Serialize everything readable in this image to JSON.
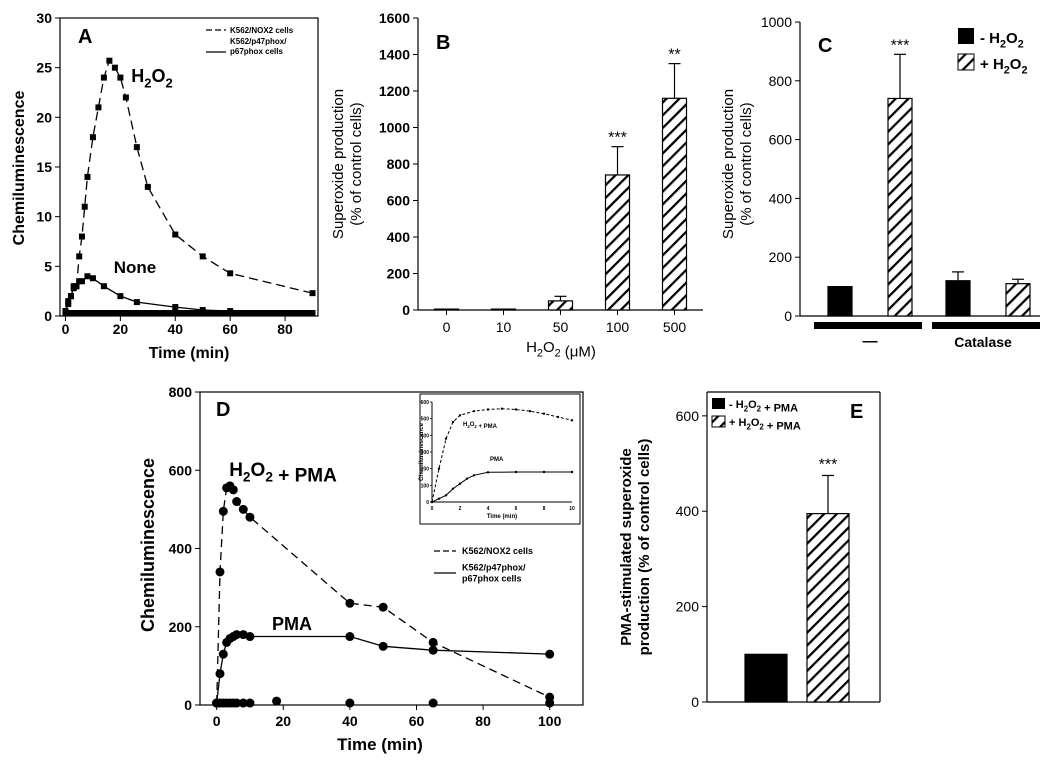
{
  "colors": {
    "ink": "#000000",
    "background": "#ffffff"
  },
  "chart_data": [
    {
      "id": "A",
      "type": "line",
      "panel_letter": "A",
      "xlabel": "Time (min)",
      "ylabel": "Chemiluminescence",
      "xlim": [
        -2,
        92
      ],
      "ylim": [
        0,
        30
      ],
      "xticks": [
        "0",
        "20",
        "40",
        "60",
        "80"
      ],
      "yticks": [
        "0",
        "5",
        "10",
        "15",
        "20",
        "25",
        "30"
      ],
      "legend": [
        "K562/NOX2 cells",
        "K562/p47phox/ p67phox cells"
      ],
      "annotations": [
        "H2O2",
        "None"
      ],
      "series": [
        {
          "style": "dashed",
          "x": [
            0,
            1,
            2,
            3,
            4,
            5,
            6,
            7,
            8,
            10,
            12,
            14,
            16,
            18,
            20,
            22,
            26,
            30,
            40,
            50,
            60,
            90
          ],
          "y": [
            0.5,
            1.5,
            2.0,
            3.0,
            3.0,
            6.0,
            8.0,
            11.0,
            14.0,
            18.0,
            21.0,
            24.0,
            25.7,
            25.0,
            24.0,
            22.0,
            17.0,
            13.0,
            8.2,
            6.0,
            4.3,
            2.3
          ]
        },
        {
          "style": "solid",
          "x": [
            0,
            1,
            2,
            3,
            4,
            5,
            6,
            8,
            10,
            14,
            20,
            26,
            40,
            50,
            60,
            90
          ],
          "y": [
            0.5,
            1.2,
            2.0,
            2.8,
            3.0,
            3.5,
            3.5,
            4.0,
            3.8,
            3.0,
            2.0,
            1.4,
            0.9,
            0.6,
            0.5,
            0.3
          ]
        },
        {
          "style": "markers",
          "x": [
            0,
            2,
            4,
            6,
            8,
            10,
            12,
            14,
            16,
            18,
            20,
            22,
            24,
            26,
            28,
            30,
            32,
            34,
            36,
            38,
            40,
            42,
            44,
            46,
            48,
            50,
            52,
            54,
            56,
            58,
            60,
            62,
            64,
            66,
            68,
            70,
            72,
            74,
            76,
            78,
            80,
            82,
            84,
            86,
            88
          ],
          "y": [
            0.3,
            0.3,
            0.3,
            0.3,
            0.3,
            0.3,
            0.3,
            0.3,
            0.3,
            0.3,
            0.3,
            0.3,
            0.3,
            0.3,
            0.3,
            0.3,
            0.3,
            0.3,
            0.3,
            0.3,
            0.3,
            0.3,
            0.3,
            0.3,
            0.3,
            0.3,
            0.3,
            0.3,
            0.3,
            0.3,
            0.3,
            0.3,
            0.3,
            0.3,
            0.3,
            0.3,
            0.3,
            0.3,
            0.3,
            0.3,
            0.3,
            0.3,
            0.3,
            0.3,
            0.3
          ]
        }
      ]
    },
    {
      "id": "B",
      "type": "bar",
      "panel_letter": "B",
      "xlabel": "H2O2 (μM)",
      "ylabel": "Superoxide production (% of control cells)",
      "categories": [
        "0",
        "10",
        "50",
        "100",
        "500"
      ],
      "values": [
        5,
        5,
        50,
        740,
        1160
      ],
      "errors": [
        0,
        0,
        25,
        155,
        190
      ],
      "significance": [
        "",
        "",
        "",
        "***",
        "**"
      ],
      "ylim": [
        0,
        1600
      ],
      "yticks": [
        "0",
        "200",
        "400",
        "600",
        "800",
        "1000",
        "1200",
        "1400",
        "1600"
      ]
    },
    {
      "id": "C",
      "type": "bar",
      "panel_letter": "C",
      "ylabel": "Superoxide production (% of control cells)",
      "legend": [
        "- H2O2",
        "+ H2O2"
      ],
      "group_labels": [
        "—",
        "Catalase"
      ],
      "bars": [
        {
          "group": "—",
          "condition": "- H2O2",
          "value": 100,
          "error": 0,
          "sig": ""
        },
        {
          "group": "—",
          "condition": "+ H2O2",
          "value": 740,
          "error": 150,
          "sig": "***"
        },
        {
          "group": "Catalase",
          "condition": "- H2O2",
          "value": 120,
          "error": 30,
          "sig": ""
        },
        {
          "group": "Catalase",
          "condition": "+ H2O2",
          "value": 110,
          "error": 15,
          "sig": ""
        }
      ],
      "ylim": [
        0,
        1000
      ],
      "yticks": [
        "0",
        "200",
        "400",
        "600",
        "800",
        "1000"
      ]
    },
    {
      "id": "D",
      "type": "line",
      "panel_letter": "D",
      "xlabel": "Time (min)",
      "ylabel": "Chemiluminescence",
      "xlim": [
        -5,
        110
      ],
      "ylim": [
        0,
        800
      ],
      "xticks": [
        "0",
        "20",
        "40",
        "60",
        "80",
        "100"
      ],
      "yticks": [
        "0",
        "200",
        "400",
        "600",
        "800"
      ],
      "legend": [
        "K562/NOX2 cells",
        "K562/p47phox/ p67phox cells"
      ],
      "annotations": [
        "H2O2 + PMA",
        "PMA"
      ],
      "series": [
        {
          "style": "dashed",
          "x": [
            0,
            1,
            2,
            3,
            4,
            5,
            6,
            8,
            10,
            40,
            50,
            65,
            100
          ],
          "y": [
            5,
            340,
            495,
            555,
            560,
            550,
            520,
            500,
            480,
            260,
            250,
            160,
            20
          ]
        },
        {
          "style": "solid",
          "x": [
            0,
            1,
            2,
            3,
            4,
            5,
            6,
            8,
            10,
            40,
            50,
            65,
            100
          ],
          "y": [
            5,
            80,
            130,
            160,
            170,
            175,
            180,
            180,
            175,
            175,
            150,
            140,
            130
          ]
        },
        {
          "style": "markers",
          "x": [
            0,
            1,
            2,
            3,
            4,
            5,
            6,
            8,
            10,
            18,
            40,
            65,
            100
          ],
          "y": [
            5,
            5,
            5,
            5,
            5,
            5,
            5,
            5,
            5,
            10,
            5,
            5,
            5
          ]
        }
      ],
      "inset": {
        "xlabel": "Time (min)",
        "ylabel": "Chemiluminescence",
        "xlim": [
          0,
          10
        ],
        "ylim": [
          0,
          600
        ],
        "xticks": [
          "0",
          "2",
          "4",
          "6",
          "8",
          "10"
        ],
        "yticks": [
          "0",
          "100",
          "200",
          "300",
          "400",
          "500",
          "600"
        ],
        "annotations": [
          "H2O2 + PMA",
          "PMA"
        ],
        "series": [
          {
            "style": "dashed",
            "x": [
              0,
              0.5,
              1,
              1.5,
              2,
              3,
              4,
              5,
              6,
              7,
              8,
              9,
              10
            ],
            "y": [
              0,
              200,
              380,
              480,
              520,
              545,
              555,
              560,
              555,
              545,
              530,
              510,
              490
            ]
          },
          {
            "style": "solid",
            "x": [
              0,
              0.5,
              1,
              1.5,
              2,
              2.5,
              3,
              4,
              6,
              8,
              10
            ],
            "y": [
              0,
              20,
              40,
              80,
              110,
              140,
              160,
              178,
              180,
              180,
              180
            ]
          }
        ]
      }
    },
    {
      "id": "E",
      "type": "bar",
      "panel_letter": "E",
      "ylabel": "PMA-stimulated superoxide production (% of control cells)",
      "legend": [
        "- H2O2 + PMA",
        "+ H2O2 + PMA"
      ],
      "categories": [
        "- H2O2 + PMA",
        "+ H2O2 + PMA"
      ],
      "values": [
        100,
        395
      ],
      "errors": [
        0,
        80
      ],
      "significance": [
        "",
        "***"
      ],
      "ylim": [
        0,
        650
      ],
      "yticks": [
        "0",
        "200",
        "400",
        "600"
      ]
    }
  ]
}
